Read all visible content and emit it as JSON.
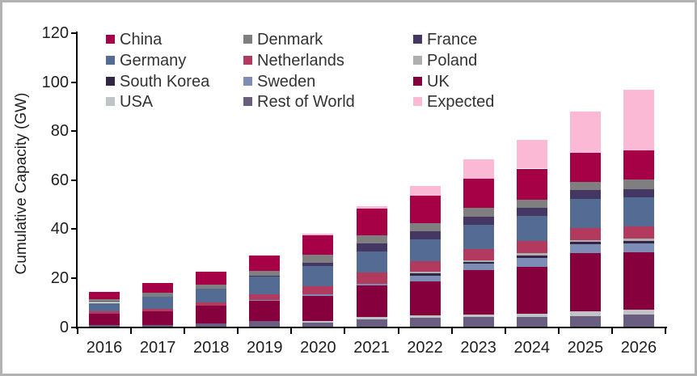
{
  "page": {
    "frame_border_color": "#b2b2b2",
    "background": "#ffffff"
  },
  "chart_data": {
    "type": "bar",
    "stacked": true,
    "title": "",
    "xlabel": "",
    "ylabel": "Cumulative Capacity (GW)",
    "ylim": [
      0,
      120
    ],
    "y_ticks": [
      0,
      20,
      40,
      60,
      80,
      100,
      120
    ],
    "grid": false,
    "legend_position": "top-left inside plot, 3 columns x 4 rows",
    "categories": [
      "2016",
      "2017",
      "2018",
      "2019",
      "2020",
      "2021",
      "2022",
      "2023",
      "2024",
      "2025",
      "2026"
    ],
    "units": "GW",
    "series": [
      {
        "name": "China",
        "color": "#A60046",
        "values": [
          3.0,
          4.0,
          5.2,
          6.3,
          8.0,
          10.7,
          11.0,
          12.0,
          12.6,
          11.8,
          11.9
        ]
      },
      {
        "name": "Denmark",
        "color": "#7F7F7F",
        "values": [
          1.5,
          1.6,
          1.7,
          1.8,
          3.2,
          3.3,
          3.3,
          3.6,
          3.3,
          3.5,
          3.9
        ]
      },
      {
        "name": "France",
        "color": "#443763",
        "values": [
          0,
          0,
          0,
          0.5,
          1.4,
          3.3,
          3.3,
          3.3,
          3.4,
          3.6,
          3.3
        ]
      },
      {
        "name": "Germany",
        "color": "#546C94",
        "values": [
          3.5,
          5.0,
          5.6,
          7.0,
          8.1,
          8.7,
          8.9,
          10.0,
          10.3,
          12.0,
          11.9
        ]
      },
      {
        "name": "Netherlands",
        "color": "#B23A5F",
        "values": [
          0.9,
          0.8,
          1.3,
          2.4,
          3.5,
          4.7,
          4.5,
          4.4,
          5.0,
          4.7,
          5.1
        ]
      },
      {
        "name": "Poland",
        "color": "#AFAFB2",
        "values": [
          0,
          0,
          0,
          0,
          0,
          0,
          0.7,
          0.6,
          0.9,
          0.9,
          0.8
        ]
      },
      {
        "name": "South Korea",
        "color": "#322546",
        "values": [
          0,
          0,
          0,
          0,
          0,
          0,
          0.8,
          0.9,
          0.9,
          0.9,
          1.0
        ]
      },
      {
        "name": "Sweden",
        "color": "#7D8DB5",
        "values": [
          0,
          0,
          0,
          0.5,
          0.6,
          0.6,
          2.5,
          2.4,
          3.6,
          3.6,
          3.8
        ]
      },
      {
        "name": "UK",
        "color": "#85003C",
        "values": [
          4.7,
          5.7,
          7.2,
          8.0,
          10.2,
          12.8,
          13.6,
          18.3,
          19.1,
          23.9,
          23.3
        ]
      },
      {
        "name": "USA",
        "color": "#C1C4C7",
        "values": [
          0,
          0,
          0,
          0,
          0.6,
          0.8,
          1.1,
          1.1,
          1.4,
          1.7,
          1.9
        ]
      },
      {
        "name": "Rest of World",
        "color": "#695E80",
        "values": [
          0.8,
          0.9,
          1.5,
          2.6,
          1.9,
          3.3,
          3.8,
          4.0,
          4.2,
          4.6,
          5.2
        ]
      },
      {
        "name": "Expected",
        "color": "#FBB9D5",
        "values": [
          0,
          0,
          0,
          0,
          0.6,
          1.3,
          4.0,
          8.0,
          11.6,
          16.9,
          24.8
        ]
      }
    ],
    "stack_order_bottom_to_top": [
      "Rest of World",
      "USA",
      "UK",
      "Sweden",
      "South Korea",
      "Poland",
      "Netherlands",
      "Germany",
      "France",
      "Denmark",
      "China",
      "Expected"
    ],
    "totals": [
      14.4,
      18.0,
      22.5,
      29.1,
      38.1,
      49.5,
      57.5,
      68.6,
      76.3,
      88.1,
      96.9
    ]
  }
}
